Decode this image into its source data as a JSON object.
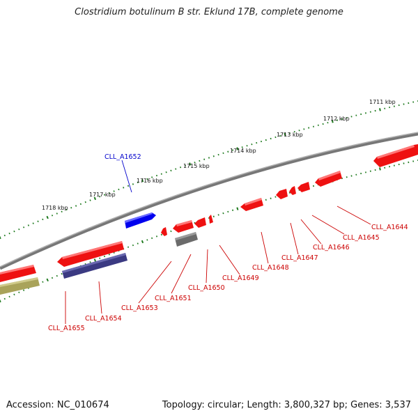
{
  "title": "Clostridium botulinum B str. Eklund 17B, complete genome",
  "footer": {
    "accession": "Accession: NC_010674",
    "summary": "Topology: circular; Length: 3,800,327 bp; Genes: 3,537"
  },
  "colors": {
    "backbone": "#8a8a8a",
    "tick": "#1e7a1e",
    "red_gene": "#ee1111",
    "blue_gene": "#0000ee",
    "navy_gene": "#3b3a82",
    "grey_gene": "#6b6b6b",
    "olive_gene": "#a9a35a",
    "red_label": "#cc0000",
    "blue_label": "#0000cc"
  },
  "scale_labels": [
    "1711 kbp",
    "1712 kbp",
    "1713 kbp",
    "1714 kbp",
    "1715 kbp",
    "1716 kbp",
    "1717 kbp",
    "1718 kbp"
  ],
  "gene_labels": [
    {
      "text": "CLL_A1652",
      "color": "blue"
    },
    {
      "text": "CLL_A1644",
      "color": "red"
    },
    {
      "text": "CLL_A1645",
      "color": "red"
    },
    {
      "text": "CLL_A1646",
      "color": "red"
    },
    {
      "text": "CLL_A1647",
      "color": "red"
    },
    {
      "text": "CLL_A1648",
      "color": "red"
    },
    {
      "text": "CLL_A1649",
      "color": "red"
    },
    {
      "text": "CLL_A1650",
      "color": "red"
    },
    {
      "text": "CLL_A1651",
      "color": "red"
    },
    {
      "text": "CLL_A1653",
      "color": "red"
    },
    {
      "text": "CLL_A1654",
      "color": "red"
    },
    {
      "text": "CLL_A1655",
      "color": "red"
    }
  ]
}
